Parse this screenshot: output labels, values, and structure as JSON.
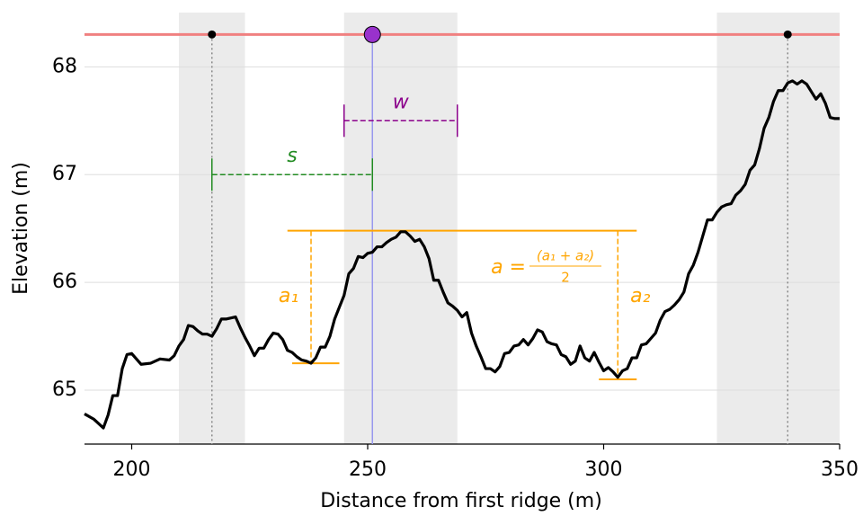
{
  "chart_data": {
    "type": "line",
    "xlabel": "Distance from first ridge (m)",
    "ylabel": "Elevation (m)",
    "xlim": [
      190,
      350
    ],
    "ylim": [
      64.5,
      68.62
    ],
    "xticks": [
      200,
      250,
      300,
      350
    ],
    "yticks": [
      65,
      66,
      67,
      68
    ],
    "grid": true,
    "x": [
      190,
      192,
      194,
      195,
      196,
      197,
      198,
      199,
      200,
      202,
      204,
      206,
      208,
      209,
      210,
      211,
      212,
      213,
      214,
      215,
      216,
      217,
      218,
      219,
      220,
      222,
      223,
      224,
      225,
      226,
      227,
      228,
      229,
      230,
      231,
      232,
      233,
      234,
      235,
      236,
      237,
      238,
      239,
      240,
      241,
      242,
      243,
      244,
      245,
      246,
      247,
      248,
      249,
      250,
      251,
      252,
      253,
      254,
      255,
      256,
      257,
      258,
      259,
      260,
      261,
      262,
      263,
      264,
      265,
      266,
      267,
      268,
      269,
      270,
      271,
      272,
      273,
      274,
      275,
      276,
      277,
      278,
      279,
      280,
      281,
      282,
      283,
      284,
      285,
      286,
      287,
      288,
      289,
      290,
      291,
      292,
      293,
      294,
      295,
      296,
      297,
      298,
      299,
      300,
      301,
      302,
      303,
      304,
      305,
      306,
      307,
      308,
      309,
      310,
      311,
      312,
      313,
      314,
      315,
      316,
      317,
      318,
      319,
      320,
      321,
      322,
      323,
      324,
      325,
      326,
      327,
      328,
      329,
      330,
      331,
      332,
      333,
      334,
      335,
      336,
      337,
      338,
      339,
      340,
      341,
      342,
      343,
      344,
      345,
      346,
      347,
      348,
      349,
      350
    ],
    "series": [
      {
        "color": "#000000",
        "values": [
          64.78,
          64.73,
          64.65,
          64.77,
          64.95,
          64.95,
          65.2,
          65.33,
          65.34,
          65.24,
          65.25,
          65.29,
          65.28,
          65.32,
          65.41,
          65.47,
          65.6,
          65.59,
          65.55,
          65.52,
          65.52,
          65.5,
          65.57,
          65.66,
          65.66,
          65.68,
          65.58,
          65.49,
          65.41,
          65.32,
          65.39,
          65.39,
          65.47,
          65.53,
          65.52,
          65.47,
          65.37,
          65.35,
          65.31,
          65.28,
          65.27,
          65.25,
          65.3,
          65.4,
          65.4,
          65.5,
          65.66,
          65.77,
          65.88,
          66.08,
          66.13,
          66.24,
          66.23,
          66.27,
          66.28,
          66.33,
          66.33,
          66.37,
          66.4,
          66.42,
          66.47,
          66.47,
          66.43,
          66.38,
          66.4,
          66.33,
          66.22,
          66.02,
          66.02,
          65.91,
          65.81,
          65.78,
          65.74,
          65.68,
          65.72,
          65.53,
          65.41,
          65.31,
          65.2,
          65.2,
          65.17,
          65.22,
          65.34,
          65.35,
          65.41,
          65.42,
          65.47,
          65.42,
          65.48,
          65.56,
          65.54,
          65.45,
          65.43,
          65.42,
          65.33,
          65.31,
          65.24,
          65.27,
          65.41,
          65.3,
          65.27,
          65.35,
          65.26,
          65.18,
          65.21,
          65.17,
          65.12,
          65.18,
          65.2,
          65.3,
          65.3,
          65.42,
          65.43,
          65.48,
          65.53,
          65.65,
          65.73,
          65.75,
          65.79,
          65.84,
          65.91,
          66.08,
          66.16,
          66.28,
          66.43,
          66.58,
          66.58,
          66.65,
          66.7,
          66.72,
          66.73,
          66.81,
          66.85,
          66.91,
          67.04,
          67.09,
          67.24,
          67.43,
          67.53,
          67.68,
          67.78,
          67.78,
          67.85,
          67.87,
          67.84,
          67.87,
          67.84,
          67.77,
          67.7,
          67.75,
          67.66,
          67.53,
          67.52,
          67.52
        ]
      }
    ],
    "spans": [
      [
        210,
        224
      ],
      [
        245,
        269
      ],
      [
        324,
        350
      ]
    ],
    "span_color": "#ebebeb",
    "ref_line": {
      "y": 68.3,
      "color": "#f08080"
    },
    "ridge_points": {
      "x": [
        217,
        339
      ],
      "y": [
        68.3,
        68.3
      ],
      "color": "#000000"
    },
    "center_point": {
      "x": 251,
      "y": 68.3,
      "color": "#9932cc",
      "line_color": "#9999ee"
    },
    "s_measure": {
      "label": "s",
      "x": [
        217,
        251
      ],
      "y": 67.0,
      "color": "#228b22"
    },
    "w_measure": {
      "label": "w",
      "x": [
        245,
        269
      ],
      "y": 67.5,
      "color": "#8b008b"
    },
    "amplitude": {
      "color": "#ffa500",
      "top": 66.48,
      "top_x": [
        233,
        307
      ],
      "a1": {
        "label": "a₁",
        "x": 238,
        "y": 65.25,
        "base_x": [
          234,
          244
        ]
      },
      "a2": {
        "label": "a₂",
        "x": 303,
        "y": 65.1,
        "base_x": [
          299,
          307
        ]
      },
      "formula": {
        "lhs": "a = ",
        "numerator": "(a₁ + a₂)",
        "denominator": "2"
      }
    }
  }
}
